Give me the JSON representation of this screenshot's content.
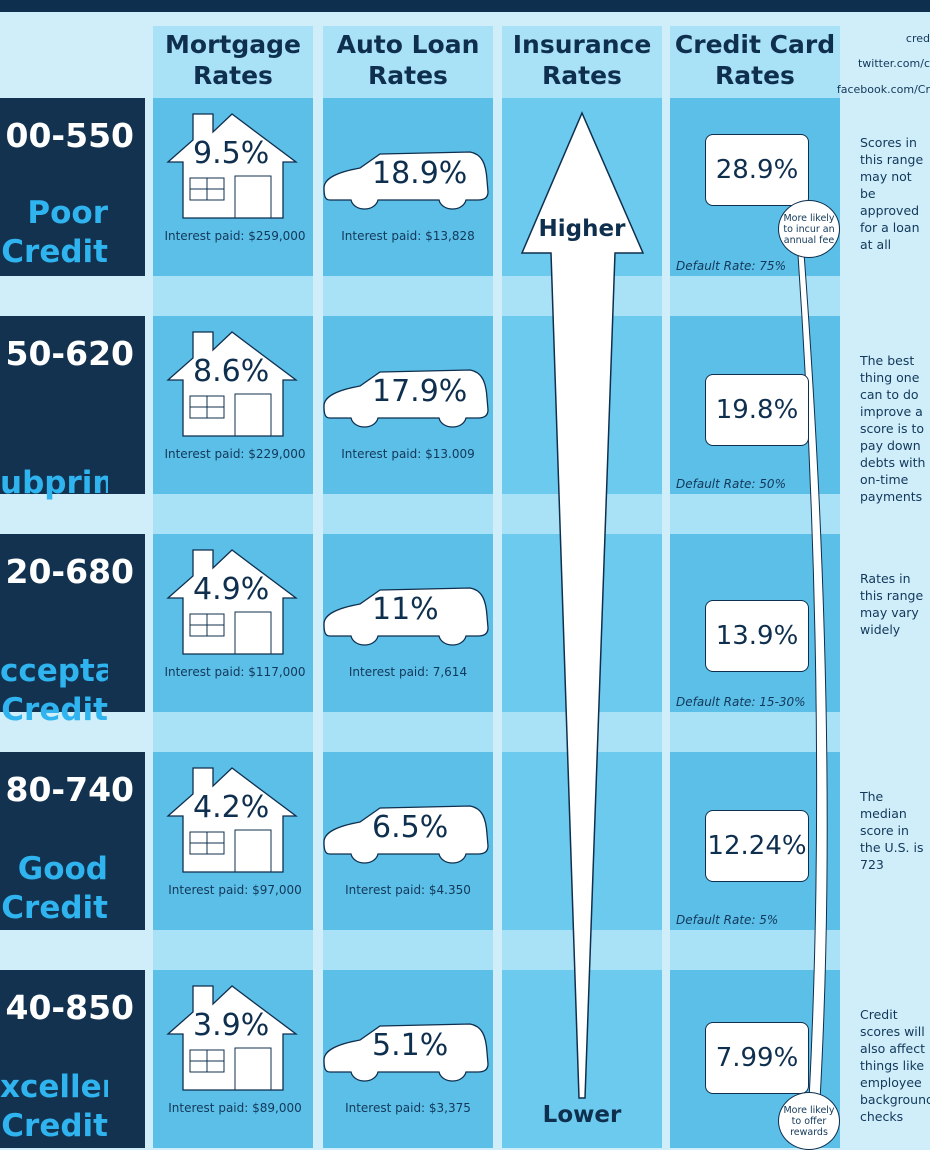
{
  "columns": {
    "mortgage": "Mortgage Rates",
    "auto": "Auto Loan Rates",
    "insurance": "Insurance Rates",
    "credit_card": "Credit Card Rates"
  },
  "social": {
    "line1": "cred",
    "line2": "twitter.com/c",
    "line3": "facebook.com/Cr"
  },
  "insurance_arrow": {
    "top": "Higher",
    "bottom": "Lower"
  },
  "rows": [
    {
      "range": "00-550",
      "label": "Poor Credit",
      "mortgage_rate": "9.5%",
      "mortgage_paid": "Interest paid: $259,000",
      "auto_rate": "18.9%",
      "auto_paid": "Interest paid: $13,828",
      "card_rate": "28.9%",
      "default_rate": "Default Rate: 75%",
      "note": "Scores in this range may not be approved for a loan at all"
    },
    {
      "range": "50-620",
      "label": "ubprime",
      "mortgage_rate": "8.6%",
      "mortgage_paid": "Interest paid: $229,000",
      "auto_rate": "17.9%",
      "auto_paid": "Interest paid: $13.009",
      "card_rate": "19.8%",
      "default_rate": "Default Rate: 50%",
      "note": "The best thing one can to do improve a score is to pay down debts with on-time payments"
    },
    {
      "range": "20-680",
      "label": "cceptable Credit",
      "mortgage_rate": "4.9%",
      "mortgage_paid": "Interest paid: $117,000",
      "auto_rate": "11%",
      "auto_paid": "Interest paid: 7,614",
      "card_rate": "13.9%",
      "default_rate": "Default Rate: 15-30%",
      "note": "Rates in this range may vary widely"
    },
    {
      "range": "80-740",
      "label": "Good Credit",
      "mortgage_rate": "4.2%",
      "mortgage_paid": "Interest paid: $97,000",
      "auto_rate": "6.5%",
      "auto_paid": "Interest paid: $4.350",
      "card_rate": "12.24%",
      "default_rate": "Default Rate: 5%",
      "note": "The median score in the U.S. is 723"
    },
    {
      "range": "40-850",
      "label": "xcellent Credit",
      "mortgage_rate": "3.9%",
      "mortgage_paid": "Interest paid: $89,000",
      "auto_rate": "5.1%",
      "auto_paid": "Interest paid: $3,375",
      "card_rate": "7.99%",
      "default_rate": "",
      "note": "Credit scores will also affect things like employee background checks"
    }
  ],
  "bubbles": {
    "top": "More likely to incur an annual fee",
    "bottom": "More likely to offer rewards"
  },
  "colors": {
    "navy": "#13324f",
    "accent_blue": "#2fb4ef",
    "cell": "#5cbfe8",
    "header": "#a9e1f6"
  }
}
